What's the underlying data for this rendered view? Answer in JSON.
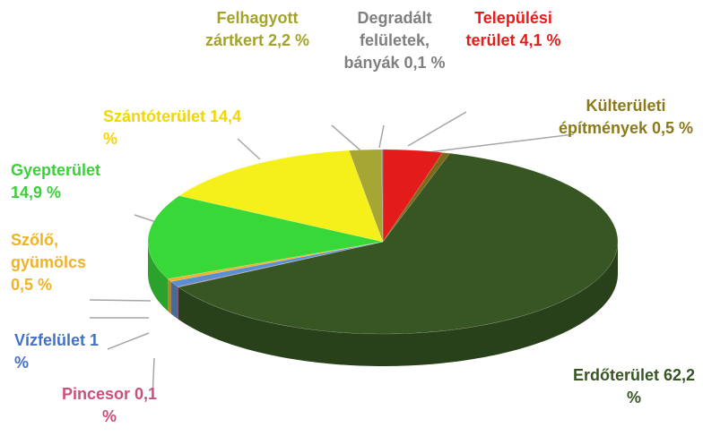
{
  "chart_data": {
    "type": "pie",
    "categories": [
      "Települési terület",
      "Külterületi építmények",
      "Erdőterület",
      "Pincesor",
      "Vízfelület",
      "Szőlő, gyümölcs",
      "Gyepterület",
      "Szántóterület",
      "Felhagyott zártkert",
      "Degradált felületek, bányák"
    ],
    "values": [
      4.1,
      0.5,
      62.2,
      0.1,
      1,
      0.5,
      14.9,
      14.4,
      2.2,
      0.1
    ],
    "value_labels": [
      "4,1 %",
      "0,5 %",
      "62,2 %",
      "0,1 %",
      "1 %",
      "0,5 %",
      "14,9 %",
      "14,4 %",
      "2,2 %",
      "0,1 %"
    ],
    "colors": [
      "#e31b1b",
      "#7a6a1a",
      "#375623",
      "#c0506a",
      "#5b8fd0",
      "#f4b02a",
      "#39d839",
      "#f5f01a",
      "#a6a635",
      "#8c8c8c"
    ],
    "label_colors": [
      "#e81c1c",
      "#8b7a1a",
      "#375623",
      "#c9507a",
      "#4472c4",
      "#f0b323",
      "#3ccf3c",
      "#f2d600",
      "#a3a32a",
      "#7f7f7f"
    ]
  }
}
